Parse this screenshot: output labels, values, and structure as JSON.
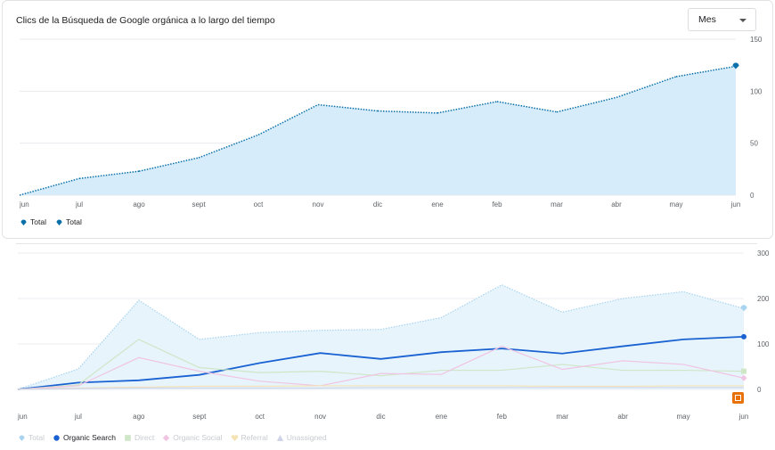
{
  "top_card": {
    "title": "Clics de la Búsqueda de Google orgánica a lo largo del tiempo",
    "period_select": "Mes"
  },
  "chart_data": [
    {
      "type": "area",
      "categories": [
        "jun",
        "jul",
        "ago",
        "sept",
        "oct",
        "nov",
        "dic",
        "ene",
        "feb",
        "mar",
        "abr",
        "may",
        "jun"
      ],
      "series": [
        {
          "name": "Total",
          "values": [
            0,
            16,
            23,
            36,
            58,
            87,
            81,
            79,
            90,
            80,
            94,
            114,
            124
          ],
          "color": "#0a70a9",
          "fill": "#d6ecfb"
        }
      ],
      "y_ticks": [
        0,
        50,
        100,
        150
      ],
      "ylim": [
        0,
        150
      ],
      "y_axis_side": "right",
      "grid": true,
      "legend": [
        {
          "label": "Total",
          "icon": "pin-marker-icon",
          "color": "#0a70a9"
        },
        {
          "label": "Total",
          "icon": "pin-marker-icon",
          "color": "#0a70a9"
        }
      ],
      "legend_position": "bottom-left"
    },
    {
      "type": "line",
      "categories": [
        "jun",
        "jul",
        "ago",
        "sept",
        "oct",
        "nov",
        "dic",
        "ene",
        "feb",
        "mar",
        "abr",
        "may",
        "jun"
      ],
      "series": [
        {
          "name": "Total",
          "values": [
            0,
            45,
            196,
            110,
            125,
            130,
            132,
            158,
            230,
            170,
            200,
            215,
            178
          ],
          "color": "#a9d4ef",
          "fill": "#e7f4fc",
          "marker": "pin"
        },
        {
          "name": "Organic Search",
          "values": [
            0,
            15,
            20,
            32,
            58,
            80,
            67,
            82,
            90,
            79,
            95,
            110,
            116
          ],
          "color": "#1a62d2",
          "marker": "circle"
        },
        {
          "name": "Direct",
          "values": [
            0,
            10,
            110,
            48,
            37,
            40,
            30,
            42,
            42,
            55,
            42,
            42,
            40
          ],
          "color": "#cfe6c7",
          "marker": "square"
        },
        {
          "name": "Organic Social",
          "values": [
            0,
            8,
            70,
            40,
            18,
            8,
            35,
            33,
            95,
            44,
            63,
            55,
            25
          ],
          "color": "#f0c4e2",
          "marker": "diamond"
        },
        {
          "name": "Referral",
          "values": [
            0,
            3,
            5,
            7,
            7,
            8,
            8,
            8,
            8,
            7,
            7,
            8,
            8
          ],
          "color": "#f5e3b5",
          "marker": "heart"
        },
        {
          "name": "Unassigned",
          "values": [
            0,
            2,
            3,
            3,
            3,
            3,
            4,
            4,
            4,
            4,
            4,
            4,
            4
          ],
          "color": "#cfd4e8",
          "marker": "triangle"
        }
      ],
      "y_ticks": [
        0,
        100,
        200,
        300
      ],
      "ylim": [
        0,
        300
      ],
      "y_axis_side": "right",
      "grid": true,
      "legend_position": "bottom-left"
    }
  ],
  "annotation_icon": "annotation-flag-icon"
}
